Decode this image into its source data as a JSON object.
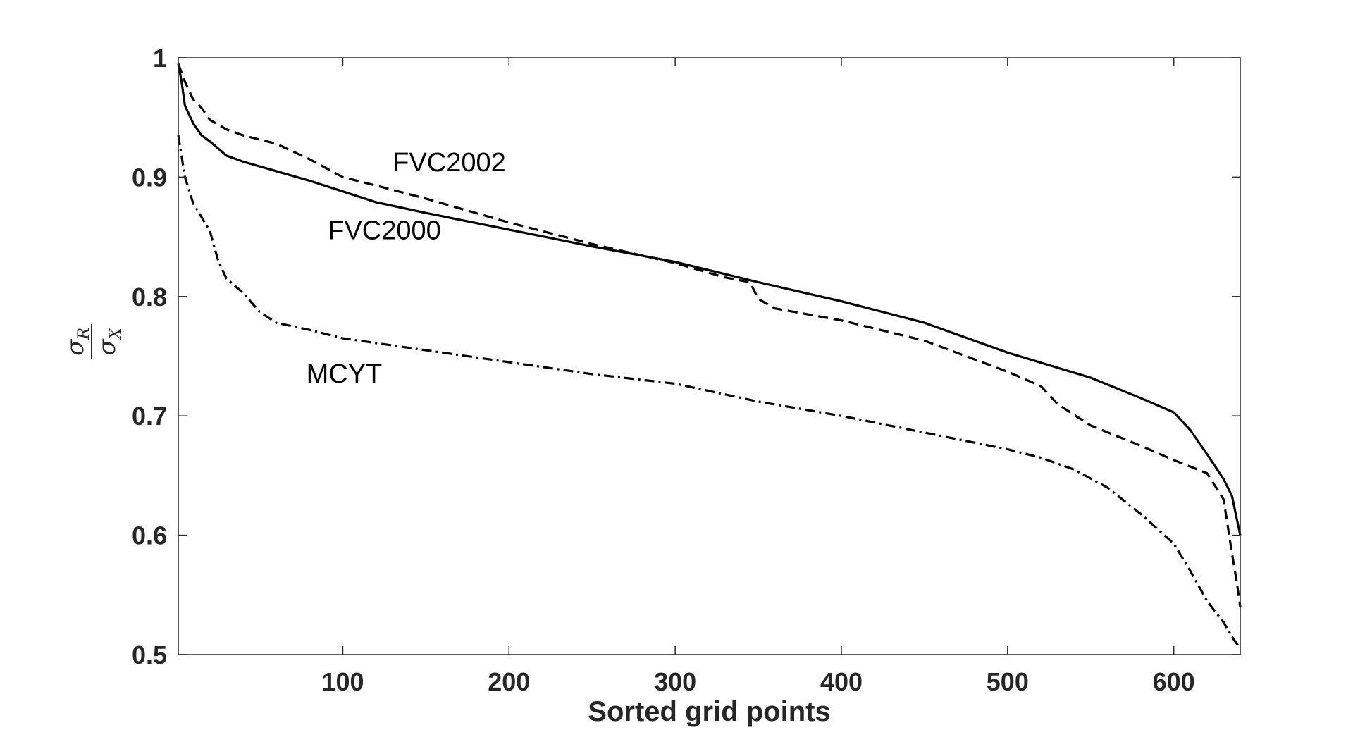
{
  "chart_data": {
    "type": "line",
    "title": "",
    "xlabel": "Sorted grid points",
    "ylabel": {
      "numerator": "σ",
      "numerator_sub": "R",
      "denominator": "σ",
      "denominator_sub": "X"
    },
    "xlim": [
      1,
      640
    ],
    "ylim": [
      0.5,
      1.0
    ],
    "xticks": [
      100,
      200,
      300,
      400,
      500,
      600
    ],
    "xtick_labels": [
      "100",
      "200",
      "300",
      "400",
      "500",
      "600"
    ],
    "yticks": [
      0.5,
      0.6,
      0.7,
      0.8,
      0.9,
      1.0
    ],
    "ytick_labels": [
      "0.5",
      "0.6",
      "0.7",
      "0.8",
      "0.9",
      "1"
    ],
    "grid": false,
    "legend": "none",
    "series": [
      {
        "name": "FVC2000",
        "style": "solid",
        "x": [
          1,
          3,
          5,
          10,
          15,
          20,
          30,
          40,
          60,
          80,
          100,
          120,
          150,
          200,
          250,
          300,
          350,
          400,
          450,
          480,
          500,
          550,
          580,
          600,
          610,
          620,
          630,
          635,
          640
        ],
        "y": [
          0.995,
          0.98,
          0.96,
          0.945,
          0.935,
          0.93,
          0.918,
          0.913,
          0.905,
          0.897,
          0.888,
          0.879,
          0.87,
          0.856,
          0.842,
          0.829,
          0.812,
          0.796,
          0.778,
          0.763,
          0.753,
          0.732,
          0.715,
          0.703,
          0.688,
          0.668,
          0.647,
          0.633,
          0.6
        ]
      },
      {
        "name": "FVC2002",
        "style": "dashed",
        "x": [
          1,
          5,
          10,
          15,
          20,
          30,
          40,
          60,
          80,
          100,
          120,
          150,
          200,
          250,
          300,
          330,
          345,
          350,
          360,
          400,
          450,
          500,
          520,
          530,
          550,
          580,
          600,
          620,
          630,
          635,
          638,
          640
        ],
        "y": [
          0.995,
          0.98,
          0.965,
          0.958,
          0.948,
          0.94,
          0.935,
          0.928,
          0.915,
          0.9,
          0.893,
          0.882,
          0.862,
          0.844,
          0.828,
          0.816,
          0.812,
          0.798,
          0.79,
          0.78,
          0.763,
          0.737,
          0.725,
          0.71,
          0.692,
          0.675,
          0.663,
          0.652,
          0.63,
          0.585,
          0.56,
          0.54
        ]
      },
      {
        "name": "MCYT",
        "style": "dashdot",
        "x": [
          1,
          5,
          10,
          20,
          25,
          30,
          40,
          50,
          60,
          80,
          100,
          150,
          200,
          250,
          300,
          350,
          400,
          450,
          500,
          520,
          540,
          560,
          580,
          600,
          610,
          620,
          630,
          635,
          640
        ],
        "y": [
          0.935,
          0.9,
          0.878,
          0.855,
          0.83,
          0.815,
          0.803,
          0.787,
          0.778,
          0.772,
          0.765,
          0.755,
          0.745,
          0.735,
          0.727,
          0.712,
          0.7,
          0.686,
          0.672,
          0.665,
          0.655,
          0.64,
          0.618,
          0.593,
          0.57,
          0.545,
          0.527,
          0.515,
          0.505
        ]
      }
    ],
    "annotations": [
      {
        "text": "FVC2002",
        "x": 130,
        "y": 0.905
      },
      {
        "text": "FVC2000",
        "x": 91,
        "y": 0.848
      },
      {
        "text": "MCYT",
        "x": 78,
        "y": 0.728
      }
    ]
  }
}
